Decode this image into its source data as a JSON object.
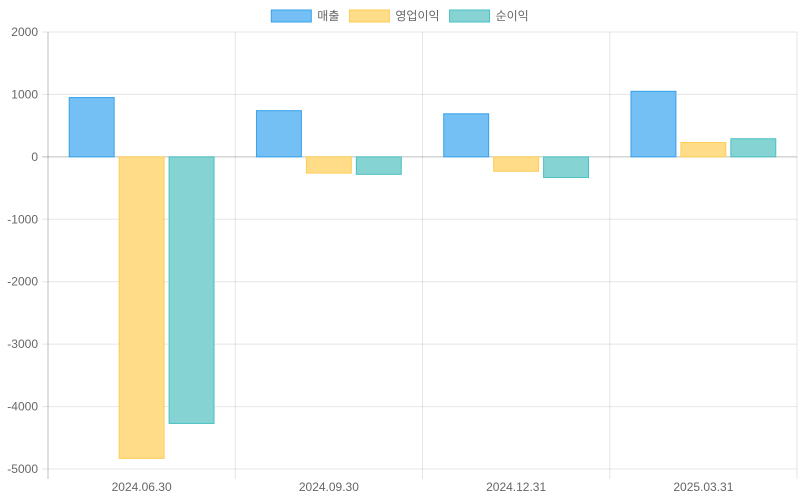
{
  "chart_data": {
    "type": "bar",
    "categories": [
      "2024.06.30",
      "2024.09.30",
      "2024.12.31",
      "2025.03.31"
    ],
    "series": [
      {
        "name": "매출",
        "values": [
          950,
          740,
          690,
          1050
        ],
        "fill": "#74bff3",
        "stroke": "#36a2eb"
      },
      {
        "name": "영업이익",
        "values": [
          -4830,
          -260,
          -230,
          230
        ],
        "fill": "#ffdc88",
        "stroke": "#ffcd56"
      },
      {
        "name": "순이익",
        "values": [
          -4270,
          -280,
          -330,
          290
        ],
        "fill": "#86d3d4",
        "stroke": "#4bc0c0"
      }
    ],
    "ylim": [
      -5000,
      2000
    ],
    "yticks": [
      "2000",
      "1000",
      "0",
      "-1000",
      "-2000",
      "-3000",
      "-4000",
      "-5000"
    ],
    "grid": true,
    "legend_position": "top-center"
  }
}
